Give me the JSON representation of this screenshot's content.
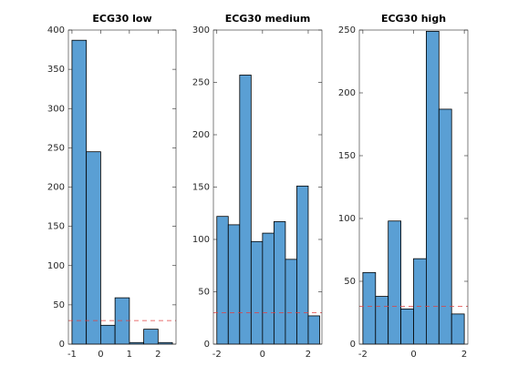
{
  "chart_data": [
    {
      "type": "histogram",
      "title": "ECG30 low",
      "bins": [
        -1,
        -0.5,
        0,
        0.5,
        1,
        1.5,
        2,
        2.5
      ],
      "values": [
        387,
        245,
        24,
        59,
        2,
        19,
        2
      ],
      "color": "#5a9fd4",
      "xlim": [
        -1.125,
        2.625
      ],
      "xticks": [
        -1,
        0,
        1,
        2
      ],
      "ylim": [
        0,
        400
      ],
      "yticks": [
        0,
        50,
        100,
        150,
        200,
        250,
        300,
        350,
        400
      ],
      "reference_line": 30,
      "reference_color": "#e04040"
    },
    {
      "type": "histogram",
      "title": "ECG30 medium",
      "bins": [
        -2,
        -1.5,
        -1,
        -0.5,
        0,
        0.5,
        1,
        1.5,
        2,
        2.5
      ],
      "values": [
        122,
        114,
        257,
        98,
        106,
        117,
        81,
        151,
        27
      ],
      "color": "#5a9fd4",
      "xlim": [
        -2.15,
        2.6
      ],
      "xticks": [
        -2,
        0,
        2
      ],
      "ylim": [
        0,
        300
      ],
      "yticks": [
        0,
        50,
        100,
        150,
        200,
        250,
        300
      ],
      "reference_line": 30,
      "reference_color": "#e04040"
    },
    {
      "type": "histogram",
      "title": "ECG30 high",
      "bins": [
        -2,
        -1.5,
        -1,
        -0.5,
        0,
        0.5,
        1,
        1.5,
        2
      ],
      "values": [
        57,
        38,
        98,
        28,
        68,
        249,
        187,
        24
      ],
      "color": "#5a9fd4",
      "xlim": [
        -2.14,
        2.14
      ],
      "xticks": [
        -2,
        0,
        2
      ],
      "ylim": [
        0,
        250
      ],
      "yticks": [
        0,
        50,
        100,
        150,
        200,
        250
      ],
      "reference_line": 30,
      "reference_color": "#e04040"
    }
  ]
}
